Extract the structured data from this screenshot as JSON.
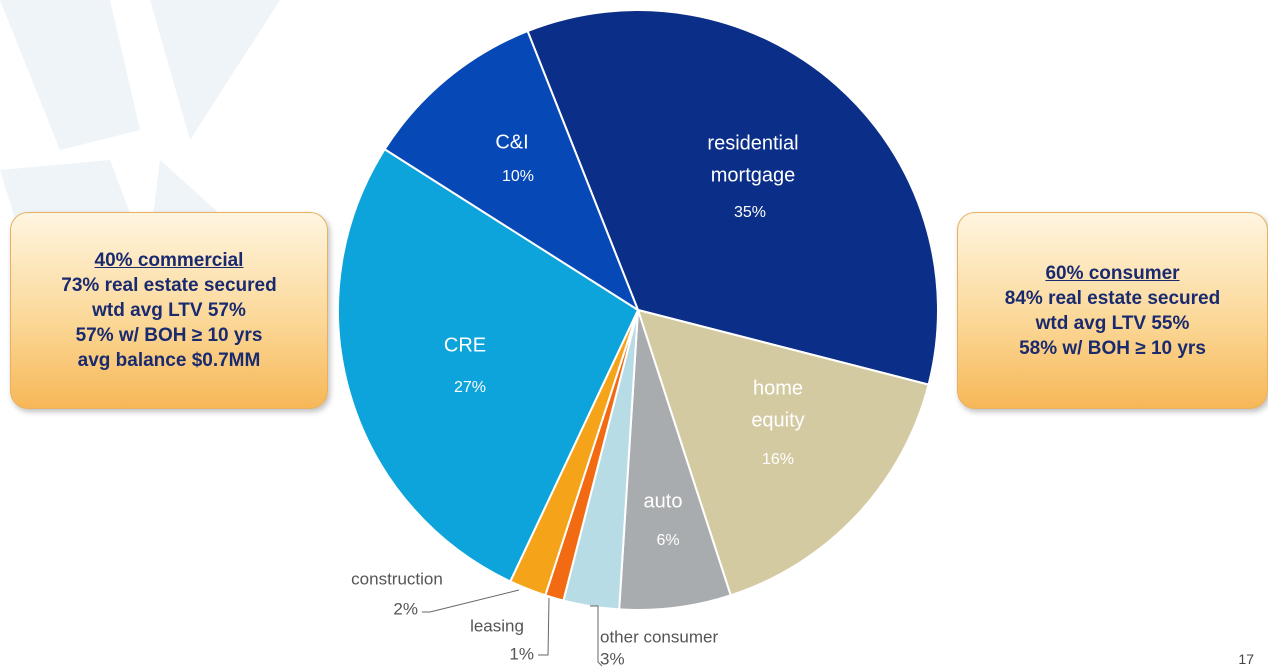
{
  "chart_data": {
    "type": "pie",
    "categories": [
      [
        "residential",
        "mortgage"
      ],
      [
        "home",
        "equity"
      ],
      [
        "auto"
      ],
      [
        "other consumer"
      ],
      [
        "leasing"
      ],
      [
        "construction"
      ],
      [
        "CRE"
      ],
      [
        "C&I"
      ]
    ],
    "values": [
      35,
      16,
      6,
      3,
      1,
      2,
      27,
      10
    ],
    "value_labels": [
      "35%",
      "16%",
      "6%",
      "3%",
      "1%",
      "2%",
      "27%",
      "10%"
    ],
    "colors": [
      "#0b2f88",
      "#d4caa2",
      "#a9acae",
      "#b8dce6",
      "#f26a12",
      "#f5a318",
      "#0da4db",
      "#0648b6"
    ]
  },
  "left_box": {
    "lines": [
      "40% commercial",
      "73% real estate secured",
      "wtd avg LTV 57%",
      "57% w/ BOH ≥ 10 yrs",
      "avg balance $0.7MM"
    ]
  },
  "right_box": {
    "lines": [
      "60% consumer",
      "84% real estate secured",
      "wtd avg LTV 55%",
      "58% w/ BOH ≥ 10 yrs"
    ]
  },
  "page_number": "17"
}
